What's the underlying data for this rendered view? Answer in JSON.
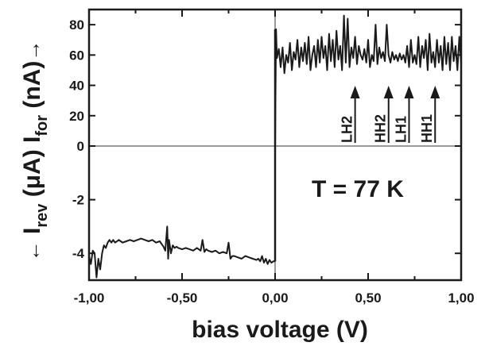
{
  "chart_data": {
    "type": "line",
    "title": "",
    "xlabel": "bias voltage (V)",
    "ylabel_upper": {
      "prefix": "I",
      "sub": "for",
      "suffix": " (nA)"
    },
    "ylabel_lower": {
      "prefix": "I",
      "sub": "rev",
      "suffix": " (μA)"
    },
    "x_ticks": [
      "-1,00",
      "-0,50",
      "0,00",
      "0,50",
      "1,00"
    ],
    "x_tick_values": [
      -1.0,
      -0.5,
      0.0,
      0.5,
      1.0
    ],
    "xlim": [
      -1.0,
      1.0
    ],
    "upper_y_ticks": [
      "80",
      "60",
      "40",
      "20",
      "0"
    ],
    "upper_y_values": [
      80,
      60,
      40,
      20,
      0
    ],
    "upper_ylim": [
      0,
      90
    ],
    "lower_y_ticks": [
      "-2",
      "-4"
    ],
    "lower_y_values": [
      -2,
      -4
    ],
    "lower_ylim": [
      -5,
      0
    ],
    "temperature_label": "T = 77 K",
    "annotations": [
      {
        "label": "LH2",
        "x": 0.43
      },
      {
        "label": "HH2",
        "x": 0.61
      },
      {
        "label": "LH1",
        "x": 0.72
      },
      {
        "label": "HH1",
        "x": 0.86
      }
    ],
    "series": [
      {
        "panel": "forward",
        "x": [
          0.0,
          0.005,
          0.01,
          0.02,
          0.03,
          0.04,
          0.05,
          0.06,
          0.07,
          0.08,
          0.09,
          0.1,
          0.11,
          0.12,
          0.13,
          0.14,
          0.15,
          0.16,
          0.17,
          0.18,
          0.19,
          0.2,
          0.21,
          0.22,
          0.23,
          0.24,
          0.25,
          0.26,
          0.27,
          0.28,
          0.29,
          0.3,
          0.31,
          0.32,
          0.33,
          0.34,
          0.35,
          0.36,
          0.37,
          0.38,
          0.39,
          0.4,
          0.41,
          0.42,
          0.43,
          0.44,
          0.45,
          0.46,
          0.47,
          0.48,
          0.49,
          0.5,
          0.51,
          0.52,
          0.53,
          0.54,
          0.55,
          0.56,
          0.57,
          0.58,
          0.59,
          0.6,
          0.61,
          0.62,
          0.63,
          0.64,
          0.65,
          0.66,
          0.67,
          0.68,
          0.69,
          0.7,
          0.71,
          0.72,
          0.73,
          0.74,
          0.75,
          0.76,
          0.77,
          0.78,
          0.79,
          0.8,
          0.81,
          0.82,
          0.83,
          0.84,
          0.85,
          0.86,
          0.87,
          0.88,
          0.89,
          0.9,
          0.91,
          0.92,
          0.93,
          0.94,
          0.95,
          0.96,
          0.97,
          0.98,
          0.99,
          1.0
        ],
        "y": [
          0,
          77,
          58,
          64,
          52,
          65,
          48,
          60,
          55,
          68,
          50,
          62,
          57,
          70,
          52,
          65,
          56,
          68,
          54,
          72,
          50,
          60,
          66,
          52,
          70,
          55,
          72,
          58,
          66,
          50,
          74,
          56,
          70,
          52,
          76,
          57,
          66,
          50,
          86,
          55,
          84,
          52,
          65,
          58,
          72,
          54,
          66,
          60,
          57,
          64,
          55,
          70,
          52,
          60,
          56,
          80,
          54,
          65,
          58,
          62,
          56,
          80,
          60,
          55,
          62,
          57,
          60,
          56,
          61,
          57,
          60,
          55,
          66,
          52,
          70,
          55,
          60,
          54,
          72,
          52,
          66,
          58,
          70,
          50,
          74,
          55,
          62,
          52,
          70,
          55,
          66,
          50,
          72,
          54,
          68,
          50,
          72,
          56,
          66,
          50,
          72,
          54
        ]
      },
      {
        "panel": "reverse",
        "x": [
          -1.0,
          -0.99,
          -0.98,
          -0.97,
          -0.96,
          -0.95,
          -0.94,
          -0.93,
          -0.92,
          -0.91,
          -0.9,
          -0.89,
          -0.88,
          -0.87,
          -0.86,
          -0.85,
          -0.84,
          -0.83,
          -0.82,
          -0.8,
          -0.78,
          -0.76,
          -0.74,
          -0.72,
          -0.7,
          -0.68,
          -0.66,
          -0.64,
          -0.62,
          -0.6,
          -0.59,
          -0.58,
          -0.575,
          -0.57,
          -0.56,
          -0.55,
          -0.54,
          -0.53,
          -0.52,
          -0.5,
          -0.48,
          -0.46,
          -0.44,
          -0.42,
          -0.4,
          -0.39,
          -0.38,
          -0.37,
          -0.36,
          -0.34,
          -0.32,
          -0.3,
          -0.28,
          -0.26,
          -0.25,
          -0.24,
          -0.23,
          -0.22,
          -0.2,
          -0.18,
          -0.16,
          -0.14,
          -0.12,
          -0.1,
          -0.09,
          -0.08,
          -0.07,
          -0.06,
          -0.05,
          -0.04,
          -0.03,
          -0.02,
          -0.01,
          0.0
        ],
        "y": [
          -4.1,
          -4.4,
          -3.9,
          -4.0,
          -4.9,
          -4.2,
          -4.6,
          -4.0,
          -3.7,
          -3.8,
          -3.6,
          -3.5,
          -3.6,
          -3.5,
          -3.6,
          -3.55,
          -3.5,
          -3.55,
          -3.6,
          -3.55,
          -3.5,
          -3.55,
          -3.5,
          -3.45,
          -3.5,
          -3.55,
          -3.5,
          -3.6,
          -3.55,
          -3.75,
          -3.9,
          -3.0,
          -4.2,
          -3.5,
          -4.0,
          -3.7,
          -3.8,
          -3.75,
          -3.8,
          -3.85,
          -3.8,
          -3.85,
          -3.9,
          -3.8,
          -3.9,
          -3.5,
          -3.95,
          -3.85,
          -3.9,
          -3.95,
          -3.9,
          -4.0,
          -3.95,
          -4.0,
          -3.6,
          -4.2,
          -4.1,
          -4.1,
          -4.15,
          -4.2,
          -4.1,
          -4.15,
          -4.2,
          -4.25,
          -4.2,
          -4.3,
          -4.1,
          -4.35,
          -4.2,
          -4.4,
          -4.25,
          -4.35,
          -4.3,
          -4.3
        ]
      }
    ]
  }
}
